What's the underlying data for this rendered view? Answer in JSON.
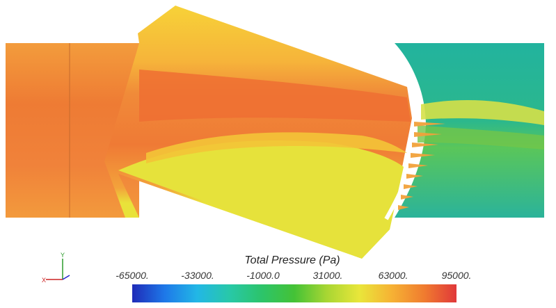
{
  "colorbar": {
    "title": "Total Pressure (Pa)",
    "ticks": [
      "-65000.",
      "-33000.",
      "-1000.0",
      "31000.",
      "63000.",
      "95000."
    ],
    "colors": [
      "#1f2bb8",
      "#1e78e8",
      "#22b7e6",
      "#29c98e",
      "#2fbe3b",
      "#8dd431",
      "#e7e53a",
      "#f5c236",
      "#f4932d",
      "#ec5a2b",
      "#e03a35"
    ]
  },
  "fields": {
    "inlet_color": "#f29a3b",
    "inlet_core_color": "#ef7a35",
    "blade_passage_color": "#f5a93c",
    "blade_passage_top_color": "#f7cf36",
    "blade_lower_color": "#e3e33a",
    "outlet_color": "#2bb39b",
    "outlet_jet_color": "#8acb3e",
    "outlet_band_color": "#d9e246"
  },
  "icons": {
    "axis_triad": "axis-triad-icon"
  }
}
